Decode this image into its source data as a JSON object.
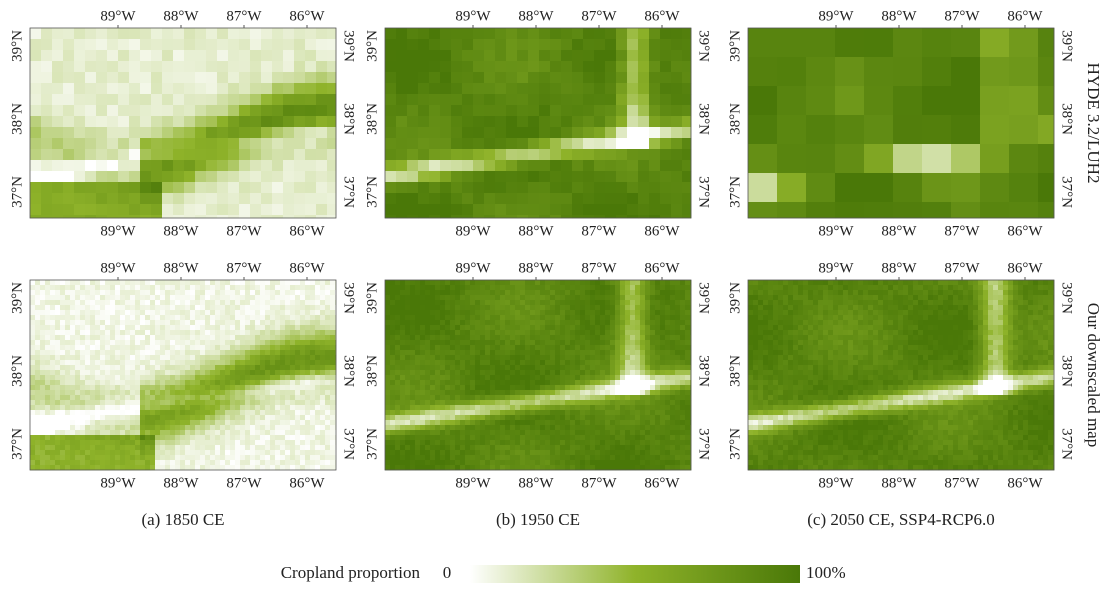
{
  "lon_ticks": [
    "89°W",
    "88°W",
    "87°W",
    "86°W"
  ],
  "lat_ticks": [
    "39°N",
    "38°N",
    "37°N"
  ],
  "row_labels": [
    "HYDE 3.2/LUH2",
    "Our downscaled map"
  ],
  "column_captions": [
    "(a) 1850 CE",
    "(b) 1950 CE",
    "(c) 2050 CE, SSP4-RCP6.0"
  ],
  "colorbar": {
    "label": "Cropland proportion",
    "min_label": "0",
    "max_label": "100%"
  }
}
